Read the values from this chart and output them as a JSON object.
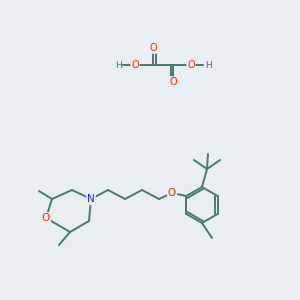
{
  "bg_color": "#e8eef2",
  "bond_color": "#4a7a6a",
  "atom_colors": {
    "O": "#ff2200",
    "N": "#2222ff",
    "C": "#4a7a6a",
    "H": "#4a7a6a"
  }
}
